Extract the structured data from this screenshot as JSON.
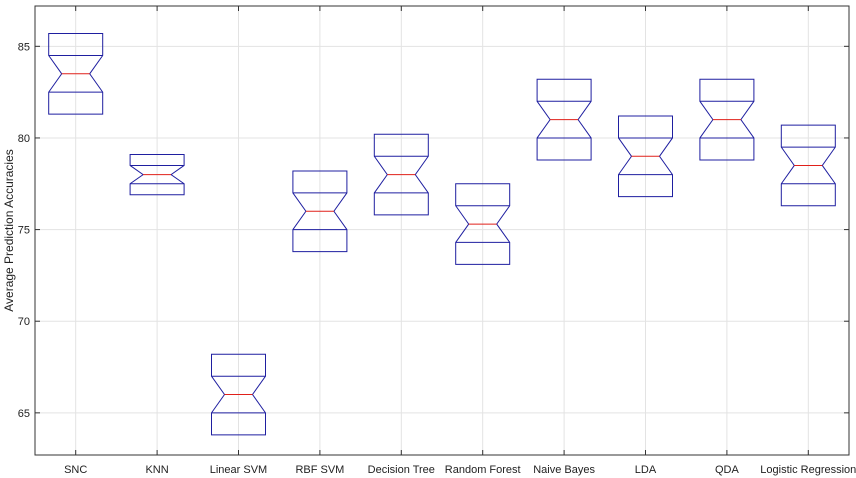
{
  "chart_data": {
    "type": "boxplot",
    "notched": true,
    "title": "",
    "xlabel": "",
    "ylabel": "Average Prediction Accuracies",
    "ylim": [
      62.7,
      87.2
    ],
    "yticks": [
      65,
      70,
      75,
      80,
      85
    ],
    "grid": true,
    "categories": [
      "SNC",
      "KNN",
      "Linear SVM",
      "RBF SVM",
      "Decision Tree",
      "Random Forest",
      "Naive Bayes",
      "LDA",
      "QDA",
      "Logistic Regression"
    ],
    "boxes": [
      {
        "q1": 82.5,
        "median": 83.5,
        "q3": 84.5,
        "notch_low": 81.3,
        "notch_high": 85.7
      },
      {
        "q1": 77.5,
        "median": 78.0,
        "q3": 78.5,
        "notch_low": 76.9,
        "notch_high": 79.1
      },
      {
        "q1": 65.0,
        "median": 66.0,
        "q3": 67.0,
        "notch_low": 63.8,
        "notch_high": 68.2
      },
      {
        "q1": 75.0,
        "median": 76.0,
        "q3": 77.0,
        "notch_low": 73.8,
        "notch_high": 78.2
      },
      {
        "q1": 77.0,
        "median": 78.0,
        "q3": 79.0,
        "notch_low": 75.8,
        "notch_high": 80.2
      },
      {
        "q1": 74.3,
        "median": 75.3,
        "q3": 76.3,
        "notch_low": 73.1,
        "notch_high": 77.5
      },
      {
        "q1": 80.0,
        "median": 81.0,
        "q3": 82.0,
        "notch_low": 78.8,
        "notch_high": 83.2
      },
      {
        "q1": 78.0,
        "median": 79.0,
        "q3": 80.0,
        "notch_low": 76.8,
        "notch_high": 81.2
      },
      {
        "q1": 80.0,
        "median": 81.0,
        "q3": 82.0,
        "notch_low": 78.8,
        "notch_high": 83.2
      },
      {
        "q1": 77.5,
        "median": 78.5,
        "q3": 79.5,
        "notch_low": 76.3,
        "notch_high": 80.7
      }
    ],
    "colors": {
      "box": "#1f1fa0",
      "median": "#e0201a",
      "grid": "#e3e3e3",
      "axis": "#333333"
    }
  }
}
